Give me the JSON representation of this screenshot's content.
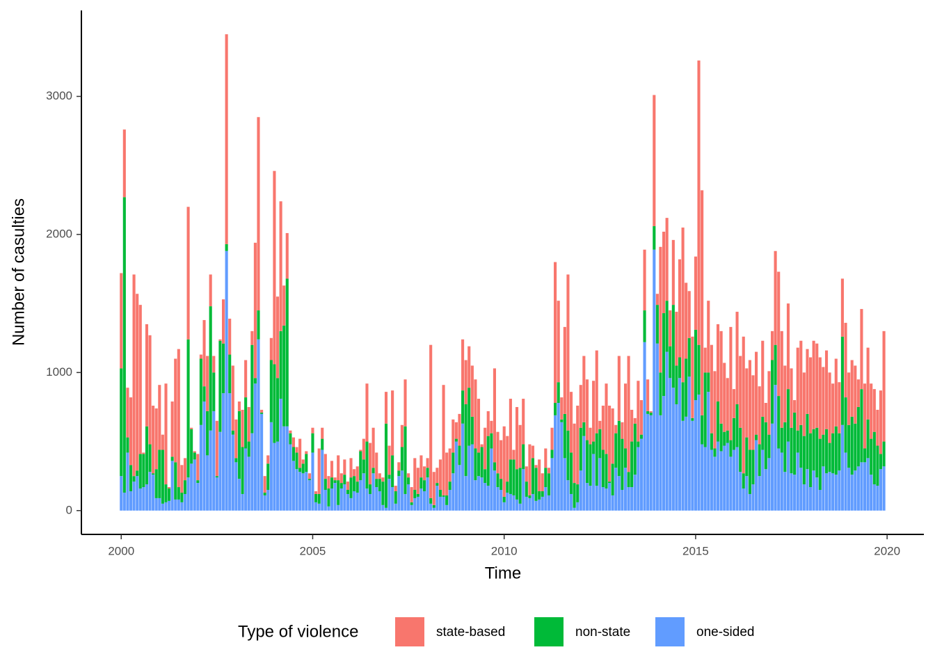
{
  "chart_data": {
    "type": "stacked-bar",
    "x_label": "Time",
    "y_label": "Number of casulties",
    "legend_title": "Type of violence",
    "legend_position": "bottom",
    "xlim": [
      1998.96,
      2020.96
    ],
    "xticks": [
      2000,
      2005,
      2010,
      2015,
      2020
    ],
    "ylim": [
      -172.5,
      3622.5
    ],
    "yticks": [
      0,
      1000,
      2000,
      3000
    ],
    "grid": false,
    "x": [
      2000,
      2000.083,
      2000.167,
      2000.25,
      2000.333,
      2000.417,
      2000.5,
      2000.583,
      2000.667,
      2000.75,
      2000.833,
      2000.917,
      2001,
      2001.083,
      2001.167,
      2001.25,
      2001.333,
      2001.417,
      2001.5,
      2001.583,
      2001.667,
      2001.75,
      2001.833,
      2001.917,
      2002,
      2002.083,
      2002.167,
      2002.25,
      2002.333,
      2002.417,
      2002.5,
      2002.583,
      2002.667,
      2002.75,
      2002.833,
      2002.917,
      2003,
      2003.083,
      2003.167,
      2003.25,
      2003.333,
      2003.417,
      2003.5,
      2003.583,
      2003.667,
      2003.75,
      2003.833,
      2003.917,
      2004,
      2004.083,
      2004.167,
      2004.25,
      2004.333,
      2004.417,
      2004.5,
      2004.583,
      2004.667,
      2004.75,
      2004.833,
      2004.917,
      2005,
      2005.083,
      2005.167,
      2005.25,
      2005.333,
      2005.417,
      2005.5,
      2005.583,
      2005.667,
      2005.75,
      2005.833,
      2005.917,
      2006,
      2006.083,
      2006.167,
      2006.25,
      2006.333,
      2006.417,
      2006.5,
      2006.583,
      2006.667,
      2006.75,
      2006.833,
      2006.917,
      2007,
      2007.083,
      2007.167,
      2007.25,
      2007.333,
      2007.417,
      2007.5,
      2007.583,
      2007.667,
      2007.75,
      2007.833,
      2007.917,
      2008,
      2008.083,
      2008.167,
      2008.25,
      2008.333,
      2008.417,
      2008.5,
      2008.583,
      2008.667,
      2008.75,
      2008.833,
      2008.917,
      2009,
      2009.083,
      2009.167,
      2009.25,
      2009.333,
      2009.417,
      2009.5,
      2009.583,
      2009.667,
      2009.75,
      2009.833,
      2009.917,
      2010,
      2010.083,
      2010.167,
      2010.25,
      2010.333,
      2010.417,
      2010.5,
      2010.583,
      2010.667,
      2010.75,
      2010.833,
      2010.917,
      2011,
      2011.083,
      2011.167,
      2011.25,
      2011.333,
      2011.417,
      2011.5,
      2011.583,
      2011.667,
      2011.75,
      2011.833,
      2011.917,
      2012,
      2012.083,
      2012.167,
      2012.25,
      2012.333,
      2012.417,
      2012.5,
      2012.583,
      2012.667,
      2012.75,
      2012.833,
      2012.917,
      2013,
      2013.083,
      2013.167,
      2013.25,
      2013.333,
      2013.417,
      2013.5,
      2013.583,
      2013.667,
      2013.75,
      2013.833,
      2013.917,
      2014,
      2014.083,
      2014.167,
      2014.25,
      2014.333,
      2014.417,
      2014.5,
      2014.583,
      2014.667,
      2014.75,
      2014.833,
      2014.917,
      2015,
      2015.083,
      2015.167,
      2015.25,
      2015.333,
      2015.417,
      2015.5,
      2015.583,
      2015.667,
      2015.75,
      2015.833,
      2015.917,
      2016,
      2016.083,
      2016.167,
      2016.25,
      2016.333,
      2016.417,
      2016.5,
      2016.583,
      2016.667,
      2016.75,
      2016.833,
      2016.917,
      2017,
      2017.083,
      2017.167,
      2017.25,
      2017.333,
      2017.417,
      2017.5,
      2017.583,
      2017.667,
      2017.75,
      2017.833,
      2017.917,
      2018,
      2018.083,
      2018.167,
      2018.25,
      2018.333,
      2018.417,
      2018.5,
      2018.583,
      2018.667,
      2018.75,
      2018.833,
      2018.917,
      2019,
      2019.083,
      2019.167,
      2019.25,
      2019.333,
      2019.417,
      2019.5,
      2019.583,
      2019.667,
      2019.75,
      2019.833,
      2019.917
    ],
    "series": [
      {
        "name": "state-based",
        "color": "#F8766D",
        "values": [
          690,
          490,
          360,
          490,
          1460,
          1280,
          1080,
          10,
          740,
          790,
          490,
          440,
          470,
          110,
          730,
          10,
          400,
          750,
          1000,
          200,
          160,
          960,
          10,
          10,
          190,
          30,
          480,
          400,
          230,
          120,
          400,
          10,
          320,
          1520,
          260,
          470,
          280,
          70,
          270,
          270,
          250,
          100,
          980,
          1400,
          20,
          120,
          60,
          160,
          1400,
          590,
          940,
          290,
          330,
          20,
          70,
          40,
          210,
          30,
          20,
          40,
          40,
          20,
          330,
          80,
          180,
          90,
          120,
          20,
          180,
          70,
          110,
          60,
          140,
          50,
          110,
          10,
          150,
          420,
          300,
          290,
          190,
          40,
          30,
          230,
          210,
          470,
          40,
          60,
          160,
          340,
          30,
          110,
          230,
          190,
          160,
          100,
          70,
          1110,
          240,
          110,
          220,
          800,
          310,
          240,
          240,
          120,
          230,
          370,
          320,
          300,
          370,
          500,
          390,
          20,
          300,
          180,
          90,
          680,
          300,
          280,
          510,
          330,
          440,
          70,
          450,
          310,
          330,
          110,
          370,
          90,
          20,
          230,
          130,
          140,
          40,
          160,
          1020,
          590,
          160,
          630,
          1130,
          440,
          430,
          570,
          310,
          480,
          440,
          120,
          440,
          600,
          60,
          320,
          510,
          550,
          400,
          60,
          470,
          120,
          470,
          840,
          230,
          40,
          440,
          250,
          440,
          230,
          10,
          950,
          80,
          910,
          590,
          600,
          260,
          470,
          390,
          710,
          1120,
          550,
          340,
          590,
          530,
          2060,
          1630,
          180,
          520,
          640,
          560,
          560,
          670,
          500,
          380,
          820,
          210,
          670,
          520,
          990,
          500,
          650,
          540,
          600,
          420,
          550,
          140,
          460,
          210,
          680,
          900,
          700,
          410,
          620,
          430,
          90,
          600,
          610,
          460,
          470,
          550,
          640,
          610,
          590,
          490,
          570,
          510,
          360,
          490,
          370,
          420,
          540,
          380,
          410,
          420,
          200,
          580,
          470,
          520,
          400,
          310,
          260,
          460,
          800
        ]
      },
      {
        "name": "non-state",
        "color": "#00BA38",
        "values": [
          780,
          2140,
          110,
          190,
          40,
          40,
          250,
          240,
          420,
          200,
          10,
          210,
          350,
          390,
          130,
          90,
          30,
          270,
          90,
          70,
          100,
          1000,
          250,
          50,
          20,
          480,
          110,
          320,
          900,
          280,
          10,
          660,
          360,
          50,
          280,
          30,
          30,
          490,
          340,
          370,
          110,
          640,
          40,
          210,
          10,
          20,
          190,
          450,
          570,
          460,
          490,
          730,
          1070,
          80,
          100,
          120,
          30,
          70,
          130,
          10,
          140,
          60,
          70,
          80,
          80,
          130,
          80,
          20,
          180,
          40,
          70,
          30,
          150,
          110,
          80,
          210,
          100,
          340,
          70,
          40,
          60,
          90,
          170,
          610,
          30,
          230,
          90,
          40,
          170,
          490,
          50,
          20,
          60,
          20,
          80,
          80,
          70,
          40,
          20,
          20,
          50,
          10,
          70,
          60,
          150,
          20,
          140,
          240,
          520,
          420,
          200,
          230,
          170,
          220,
          100,
          360,
          110,
          60,
          100,
          80,
          40,
          80,
          250,
          260,
          220,
          260,
          180,
          110,
          20,
          260,
          240,
          60,
          40,
          140,
          160,
          60,
          90,
          150,
          20,
          320,
          360,
          300,
          180,
          130,
          310,
          100,
          310,
          300,
          90,
          380,
          210,
          270,
          250,
          10,
          230,
          250,
          400,
          370,
          140,
          110,
          330,
          370,
          40,
          30,
          230,
          20,
          20,
          170,
          280,
          310,
          600,
          370,
          230,
          600,
          280,
          150,
          280,
          420,
          280,
          20,
          510,
          360,
          210,
          540,
          140,
          120,
          60,
          290,
          200,
          100,
          90,
          120,
          230,
          310,
          320,
          110,
          280,
          320,
          250,
          40,
          230,
          240,
          340,
          170,
          460,
          290,
          380,
          180,
          360,
          380,
          330,
          450,
          160,
          310,
          350,
          400,
          390,
          300,
          360,
          370,
          230,
          320,
          210,
          290,
          350,
          270,
          640,
          400,
          310,
          420,
          340,
          430,
          530,
          100,
          280,
          260,
          380,
          290,
          110,
          180
        ]
      },
      {
        "name": "one-sided",
        "color": "#619CFF",
        "values": [
          250,
          130,
          420,
          140,
          210,
          250,
          160,
          170,
          190,
          280,
          260,
          90,
          90,
          50,
          60,
          70,
          360,
          80,
          80,
          60,
          120,
          240,
          340,
          370,
          200,
          620,
          790,
          400,
          580,
          720,
          240,
          570,
          850,
          1880,
          850,
          550,
          350,
          230,
          120,
          450,
          390,
          560,
          920,
          1240,
          700,
          110,
          150,
          640,
          490,
          500,
          810,
          610,
          610,
          480,
          360,
          300,
          280,
          270,
          280,
          220,
          420,
          60,
          50,
          440,
          150,
          30,
          160,
          200,
          40,
          160,
          190,
          120,
          90,
          140,
          130,
          220,
          270,
          160,
          120,
          270,
          170,
          140,
          40,
          20,
          230,
          170,
          50,
          250,
          290,
          120,
          190,
          40,
          90,
          100,
          160,
          140,
          240,
          50,
          20,
          180,
          100,
          100,
          40,
          150,
          270,
          500,
          330,
          630,
          250,
          470,
          480,
          220,
          250,
          240,
          200,
          180,
          450,
          290,
          170,
          150,
          60,
          130,
          120,
          110,
          80,
          50,
          300,
          100,
          90,
          120,
          70,
          80,
          100,
          170,
          110,
          380,
          690,
          780,
          640,
          380,
          220,
          120,
          20,
          60,
          290,
          540,
          200,
          180,
          410,
          180,
          380,
          170,
          160,
          200,
          110,
          310,
          250,
          150,
          310,
          170,
          170,
          260,
          460,
          520,
          1220,
          700,
          690,
          1890,
          1210,
          690,
          830,
          1150,
          960,
          890,
          770,
          960,
          650,
          680,
          970,
          650,
          800,
          840,
          480,
          460,
          860,
          440,
          390,
          500,
          430,
          470,
          490,
          390,
          440,
          460,
          280,
          160,
          250,
          120,
          190,
          510,
          250,
          440,
          300,
          380,
          630,
          910,
          450,
          420,
          280,
          500,
          270,
          260,
          420,
          310,
          190,
          300,
          170,
          290,
          240,
          150,
          320,
          270,
          280,
          270,
          260,
          290,
          620,
          420,
          310,
          260,
          290,
          320,
          350,
          350,
          380,
          260,
          190,
          180,
          300,
          320
        ]
      }
    ]
  }
}
